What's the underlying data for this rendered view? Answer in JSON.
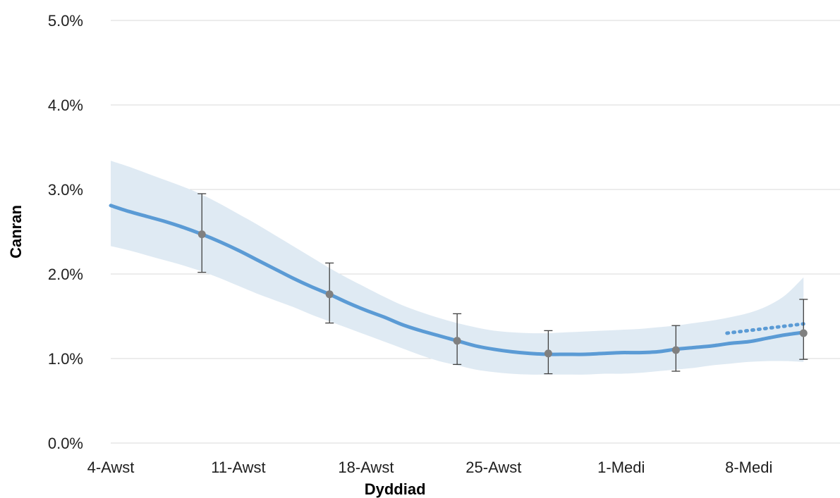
{
  "chart_data": {
    "type": "line",
    "xlabel": "Dyddiad",
    "ylabel": "Canran",
    "ylim": [
      0,
      5
    ],
    "yticks": [
      {
        "value": 0,
        "label": "0.0%"
      },
      {
        "value": 1,
        "label": "1.0%"
      },
      {
        "value": 2,
        "label": "2.0%"
      },
      {
        "value": 3,
        "label": "3.0%"
      },
      {
        "value": 4,
        "label": "4.0%"
      },
      {
        "value": 5,
        "label": "5.0%"
      }
    ],
    "xlim": [
      0,
      40
    ],
    "xticks": [
      {
        "value": 0,
        "label": "4-Awst"
      },
      {
        "value": 7,
        "label": "11-Awst"
      },
      {
        "value": 14,
        "label": "18-Awst"
      },
      {
        "value": 21,
        "label": "25-Awst"
      },
      {
        "value": 28,
        "label": "1-Medi"
      },
      {
        "value": 35,
        "label": "8-Medi"
      }
    ],
    "grid": true,
    "colors": {
      "line": "#5b9bd5",
      "band": "#dfeaf3",
      "points": "#808080",
      "error_bars": "#404040",
      "grid": "#d9d9d9"
    },
    "series": [
      {
        "x": [
          0,
          1,
          2,
          3,
          4,
          5,
          6,
          7,
          8,
          9,
          10,
          11,
          12,
          13,
          14,
          15,
          16,
          17,
          18,
          19,
          20,
          21,
          22,
          23,
          24,
          25,
          26,
          27,
          28,
          29,
          30,
          31,
          32,
          33,
          34,
          35,
          36,
          37,
          38
        ],
        "values": [
          2.81,
          2.74,
          2.68,
          2.62,
          2.55,
          2.47,
          2.38,
          2.28,
          2.17,
          2.06,
          1.95,
          1.85,
          1.76,
          1.66,
          1.57,
          1.49,
          1.4,
          1.33,
          1.27,
          1.21,
          1.15,
          1.11,
          1.08,
          1.06,
          1.05,
          1.05,
          1.05,
          1.06,
          1.07,
          1.07,
          1.08,
          1.11,
          1.13,
          1.15,
          1.18,
          1.2,
          1.24,
          1.28,
          1.31
        ],
        "lower": [
          2.33,
          2.28,
          2.22,
          2.16,
          2.1,
          2.03,
          1.95,
          1.86,
          1.77,
          1.69,
          1.61,
          1.52,
          1.44,
          1.36,
          1.28,
          1.2,
          1.12,
          1.04,
          0.97,
          0.92,
          0.87,
          0.84,
          0.82,
          0.81,
          0.81,
          0.81,
          0.81,
          0.82,
          0.82,
          0.83,
          0.85,
          0.87,
          0.89,
          0.92,
          0.94,
          0.96,
          0.97,
          0.97,
          0.96
        ],
        "upper": [
          3.34,
          3.27,
          3.19,
          3.11,
          3.03,
          2.94,
          2.83,
          2.71,
          2.59,
          2.46,
          2.33,
          2.2,
          2.07,
          1.95,
          1.84,
          1.73,
          1.63,
          1.55,
          1.48,
          1.42,
          1.37,
          1.33,
          1.31,
          1.3,
          1.3,
          1.31,
          1.32,
          1.33,
          1.34,
          1.35,
          1.37,
          1.39,
          1.42,
          1.45,
          1.49,
          1.54,
          1.62,
          1.75,
          1.96
        ],
        "projection_x": [
          33.8,
          38
        ],
        "projection_values": [
          1.3,
          1.41
        ]
      }
    ],
    "points": [
      {
        "x": 5,
        "y": 2.47,
        "lower": 2.02,
        "upper": 2.95
      },
      {
        "x": 12,
        "y": 1.76,
        "lower": 1.42,
        "upper": 2.13
      },
      {
        "x": 19,
        "y": 1.21,
        "lower": 0.93,
        "upper": 1.53
      },
      {
        "x": 24,
        "y": 1.06,
        "lower": 0.82,
        "upper": 1.33
      },
      {
        "x": 31,
        "y": 1.1,
        "lower": 0.85,
        "upper": 1.39
      },
      {
        "x": 38,
        "y": 1.3,
        "lower": 0.99,
        "upper": 1.7
      }
    ]
  }
}
